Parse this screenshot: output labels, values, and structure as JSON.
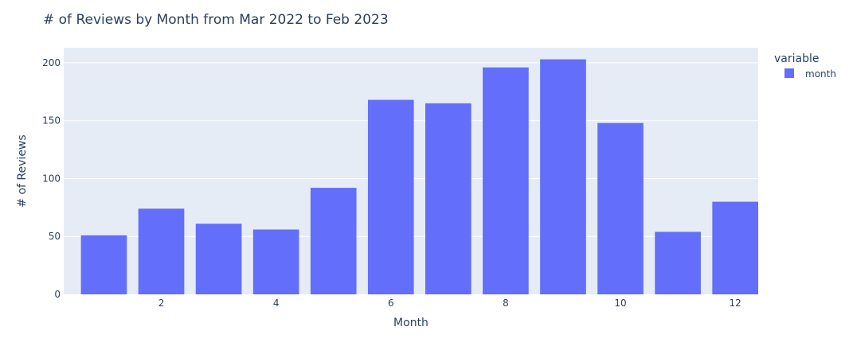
{
  "chart_data": {
    "type": "bar",
    "title": "# of Reviews by Month from Mar 2022 to Feb 2023",
    "xlabel": "Month",
    "ylabel": "# of Reviews",
    "legend_title": "variable",
    "legend_placement": "top-right",
    "grid": true,
    "x_ticks": [
      2,
      4,
      6,
      8,
      10,
      12
    ],
    "y_ticks": [
      0,
      50,
      100,
      150,
      200
    ],
    "xlim": [
      0.3,
      12.4
    ],
    "ylim": [
      0,
      213
    ],
    "colors": {
      "bar": "#636efa",
      "plot_bg": "#e5ecf6",
      "grid": "#ffffff",
      "text": "#2a3f5f"
    },
    "series": [
      {
        "name": "month",
        "x": [
          1,
          2,
          3,
          4,
          5,
          6,
          7,
          8,
          9,
          10,
          11,
          12
        ],
        "values": [
          51,
          74,
          61,
          56,
          92,
          168,
          165,
          196,
          203,
          148,
          54,
          80
        ]
      }
    ]
  }
}
